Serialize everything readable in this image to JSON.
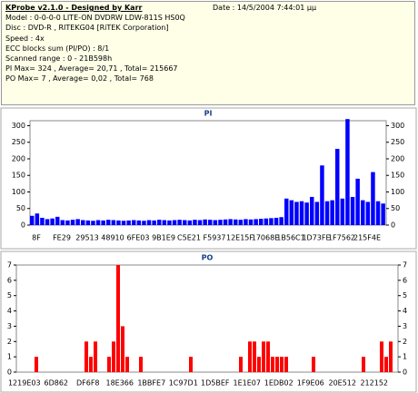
{
  "header": {
    "title": "KProbe v2.1.0 - Designed by Karr",
    "date": "Date : 14/5/2004 7:44:01 μμ",
    "lines": [
      "Model : 0-0-0-0 LITE-ON DVDRW LDW-811S   HS0Q",
      "Disc : DVD-R , RITEKG04 [RiTEK Corporation]",
      "Speed : 4x",
      "ECC blocks sum (PI/PO) : 8/1",
      "Scanned range : 0 - 21B598h",
      "PI Max= 324 , Average= 20,71 , Total= 215667",
      "PO Max= 7 , Average= 0,02 , Total= 768"
    ]
  },
  "chart_data": [
    {
      "type": "bar",
      "title": "PI",
      "color": "#0000ff",
      "ylim": [
        0,
        315
      ],
      "yticks": [
        0,
        50,
        100,
        150,
        200,
        250,
        300
      ],
      "xtick_labels": [
        "8F",
        "FE29",
        "29513",
        "48910",
        "6FE03",
        "9B1E9",
        "C5E21",
        "F5937",
        "12E15F",
        "17068E",
        "1B56C1",
        "1D73FE",
        "1F7562",
        "215F4E"
      ],
      "values": [
        28,
        35,
        22,
        18,
        20,
        25,
        15,
        14,
        16,
        18,
        15,
        14,
        13,
        15,
        14,
        16,
        15,
        14,
        13,
        14,
        15,
        14,
        13,
        15,
        14,
        16,
        15,
        14,
        15,
        16,
        15,
        14,
        16,
        15,
        17,
        16,
        15,
        16,
        17,
        18,
        17,
        16,
        18,
        17,
        18,
        19,
        20,
        21,
        22,
        24,
        80,
        75,
        70,
        72,
        68,
        85,
        70,
        180,
        72,
        75,
        230,
        80,
        320,
        85,
        140,
        75,
        70,
        160,
        72,
        65
      ]
    },
    {
      "type": "bar",
      "title": "PO",
      "color": "#ff0000",
      "ylim": [
        0,
        7
      ],
      "yticks": [
        0,
        1,
        2,
        3,
        4,
        5,
        6,
        7
      ],
      "xtick_labels": [
        "1219E03",
        "6D862",
        "DF6F8",
        "18E366",
        "1BBFE7",
        "1C97D1",
        "1D5BEF",
        "1E1E07",
        "1EDB02",
        "1F9E06",
        "20E512",
        "212152"
      ],
      "values": [
        0,
        0,
        0,
        0,
        1,
        0,
        0,
        0,
        0,
        0,
        0,
        0,
        0,
        0,
        0,
        2,
        1,
        2,
        0,
        0,
        1,
        2,
        7,
        3,
        1,
        0,
        0,
        1,
        0,
        0,
        0,
        0,
        0,
        0,
        0,
        0,
        0,
        0,
        1,
        0,
        0,
        0,
        0,
        0,
        0,
        0,
        0,
        0,
        0,
        1,
        0,
        2,
        2,
        1,
        2,
        2,
        1,
        1,
        1,
        1,
        0,
        0,
        0,
        0,
        0,
        1,
        0,
        0,
        0,
        0,
        0,
        0,
        0,
        0,
        0,
        0,
        1,
        0,
        0,
        0,
        2,
        1,
        2,
        0
      ]
    }
  ]
}
